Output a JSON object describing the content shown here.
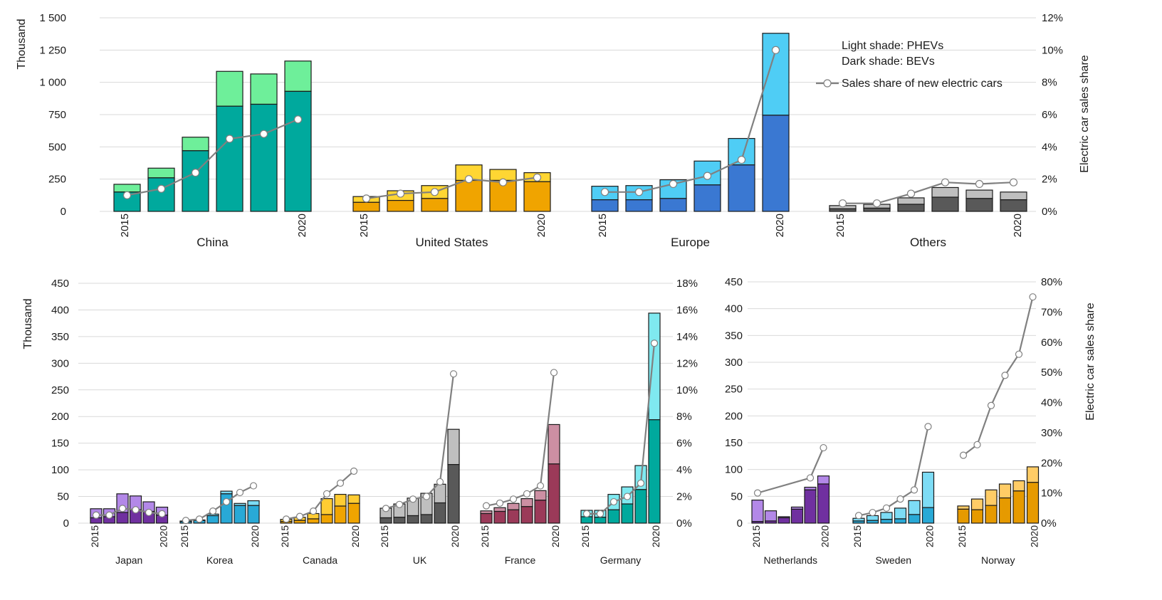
{
  "chart_data": [
    {
      "id": "top",
      "type": "bar",
      "stacked": true,
      "y_left_label": "Thousand",
      "y_right_label": "Electric car sales share",
      "y_left_ticks": [
        "0",
        "250",
        "500",
        "750",
        "1 000",
        "1 250",
        "1 500"
      ],
      "y_left_range": [
        0,
        1500
      ],
      "y_right_ticks": [
        "0%",
        "2%",
        "4%",
        "6%",
        "8%",
        "10%",
        "12%"
      ],
      "y_right_range": [
        0,
        12
      ],
      "grid": true,
      "legend": {
        "light": "Light shade: PHEVs",
        "dark": "Dark shade: BEVs",
        "line": "Sales share of new electric cars"
      },
      "year_labels": [
        "2015",
        "2020"
      ],
      "groups": [
        {
          "name": "China",
          "dark": "#00A99D",
          "light": "#6EEF9A",
          "line": "#808080",
          "bev": [
            150,
            260,
            470,
            815,
            830,
            930
          ],
          "phev": [
            60,
            75,
            105,
            270,
            235,
            235
          ],
          "share": [
            1.0,
            1.4,
            2.4,
            4.5,
            4.8,
            5.7
          ]
        },
        {
          "name": "United States",
          "dark": "#F0A400",
          "light": "#FFD633",
          "line": "#808080",
          "bev": [
            70,
            85,
            100,
            240,
            240,
            230
          ],
          "phev": [
            45,
            75,
            100,
            120,
            85,
            70
          ],
          "share": [
            0.8,
            1.1,
            1.2,
            2.0,
            1.8,
            2.1
          ]
        },
        {
          "name": "Europe",
          "dark": "#3A78D2",
          "light": "#4FCDF5",
          "line": "#808080",
          "bev": [
            90,
            90,
            100,
            205,
            360,
            745
          ],
          "phev": [
            105,
            110,
            145,
            185,
            205,
            635
          ],
          "share": [
            1.2,
            1.2,
            1.7,
            2.2,
            3.2,
            10.0
          ]
        },
        {
          "name": "Others",
          "dark": "#595959",
          "light": "#BFBFBF",
          "line": "#808080",
          "bev": [
            20,
            25,
            55,
            110,
            100,
            90
          ],
          "phev": [
            25,
            30,
            50,
            75,
            65,
            60
          ],
          "share": [
            0.5,
            0.5,
            1.1,
            1.8,
            1.7,
            1.8
          ]
        }
      ]
    },
    {
      "id": "bottom-middle",
      "type": "bar",
      "stacked": true,
      "y_left_label": "Thousand",
      "y_left_ticks": [
        "0",
        "50",
        "100",
        "150",
        "200",
        "250",
        "300",
        "350",
        "400",
        "450"
      ],
      "y_left_range": [
        0,
        450
      ],
      "y_right_ticks": [
        "0%",
        "2%",
        "4%",
        "6%",
        "8%",
        "10%",
        "12%",
        "14%",
        "16%",
        "18%"
      ],
      "y_right_range": [
        0,
        18
      ],
      "grid": true,
      "year_labels": [
        "2015",
        "2020"
      ],
      "groups": [
        {
          "name": "Japan",
          "dark": "#7030A0",
          "light": "#B388E8",
          "line": "#808080",
          "bev": [
            10,
            12,
            20,
            25,
            22,
            15
          ],
          "phev": [
            17,
            15,
            35,
            26,
            18,
            15
          ],
          "share": [
            0.6,
            0.6,
            1.1,
            1.0,
            0.8,
            0.7
          ]
        },
        {
          "name": "Korea",
          "dark": "#29A9D6",
          "light": "#7DDCF5",
          "line": "#808080",
          "bev": [
            3,
            5,
            14,
            55,
            33,
            33
          ],
          "phev": [
            1,
            1,
            3,
            5,
            4,
            9
          ],
          "share": [
            0.2,
            0.3,
            0.9,
            1.6,
            2.3,
            2.8
          ]
        },
        {
          "name": "Canada",
          "dark": "#F0A400",
          "light": "#FFCC33",
          "line": "#808080",
          "bev": [
            3,
            5,
            8,
            16,
            32,
            37
          ],
          "phev": [
            4,
            6,
            10,
            30,
            22,
            16
          ],
          "share": [
            0.3,
            0.5,
            0.9,
            2.2,
            3.0,
            3.9
          ]
        },
        {
          "name": "UK",
          "dark": "#595959",
          "light": "#BFBFBF",
          "line": "#808080",
          "bev": [
            10,
            11,
            14,
            16,
            38,
            110
          ],
          "phev": [
            18,
            25,
            33,
            40,
            35,
            66
          ],
          "share": [
            1.1,
            1.4,
            1.8,
            2.0,
            3.1,
            11.2
          ]
        },
        {
          "name": "France",
          "dark": "#9B3A59",
          "light": "#CC8FA3",
          "line": "#808080",
          "bev": [
            18,
            22,
            25,
            31,
            43,
            111
          ],
          "phev": [
            5,
            7,
            12,
            15,
            18,
            74
          ],
          "share": [
            1.3,
            1.5,
            1.8,
            2.2,
            2.8,
            11.3
          ]
        },
        {
          "name": "Germany",
          "dark": "#00A99D",
          "light": "#7FE9F0",
          "line": "#808080",
          "bev": [
            12,
            11,
            25,
            36,
            63,
            194
          ],
          "phev": [
            12,
            13,
            29,
            32,
            45,
            200
          ],
          "share": [
            0.7,
            0.7,
            1.6,
            2.0,
            3.0,
            13.5
          ]
        }
      ]
    },
    {
      "id": "bottom-right",
      "type": "bar",
      "stacked": true,
      "y_right_label": "Electric car sales share",
      "y_left_ticks": [
        "0",
        "50",
        "100",
        "150",
        "200",
        "250",
        "300",
        "350",
        "400",
        "450"
      ],
      "y_left_range": [
        0,
        450
      ],
      "y_right_ticks": [
        "0%",
        "10%",
        "20%",
        "30%",
        "40%",
        "50%",
        "60%",
        "70%",
        "80%"
      ],
      "y_right_range": [
        0,
        80
      ],
      "grid": true,
      "year_labels": [
        "2015",
        "2020"
      ],
      "groups": [
        {
          "name": "Netherlands",
          "dark": "#7030A0",
          "light": "#B388E8",
          "line": "#808080",
          "bev": [
            3,
            4,
            10,
            26,
            62,
            73
          ],
          "phev": [
            40,
            19,
            2,
            4,
            5,
            15
          ],
          "share": [
            10,
            null,
            null,
            null,
            15,
            25
          ],
          "share_x": [
            0,
            4,
            5
          ]
        },
        {
          "name": "Sweden",
          "dark": "#29A9D6",
          "light": "#7DDCF5",
          "line": "#808080",
          "bev": [
            4,
            5,
            7,
            8,
            16,
            29
          ],
          "phev": [
            5,
            9,
            13,
            20,
            26,
            66
          ],
          "share": [
            2.5,
            3.5,
            5,
            8,
            11,
            32
          ]
        },
        {
          "name": "Norway",
          "dark": "#E69A00",
          "light": "#FFCC66",
          "line": "#808080",
          "bev": [
            26,
            25,
            33,
            47,
            60,
            76
          ],
          "phev": [
            6,
            20,
            29,
            26,
            19,
            29
          ],
          "share": [
            22.5,
            26,
            39,
            49,
            56,
            75
          ]
        }
      ]
    }
  ]
}
